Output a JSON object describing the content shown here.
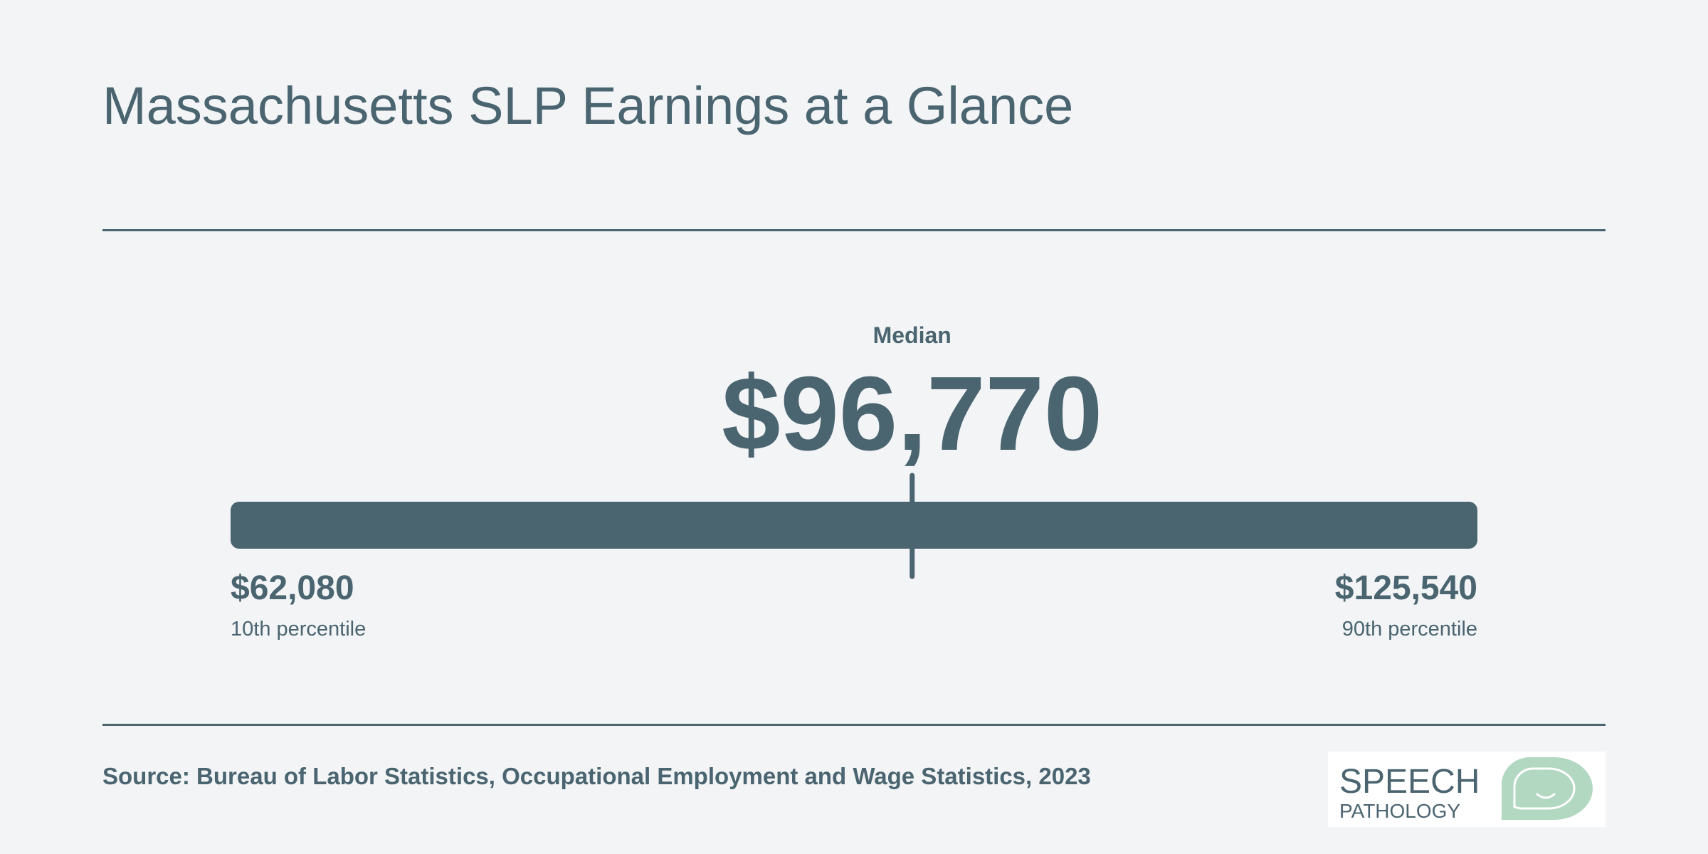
{
  "page": {
    "title": "Massachusetts SLP Earnings at a Glance",
    "source": "Source: Bureau of Labor Statistics, Occupational Employment and Wage Statistics, 2023"
  },
  "logo": {
    "line1": "SPEECH",
    "line2": "PATHOLOGY",
    "icon": "speech-bubble-smile-icon",
    "bubble_color": "#b2d8c2"
  },
  "chart_data": {
    "type": "range",
    "title": "Massachusetts SLP Earnings at a Glance",
    "min": {
      "label": "10th percentile",
      "value": 62080,
      "display": "$62,080"
    },
    "median": {
      "label": "Median",
      "value": 96770,
      "display": "$96,770"
    },
    "max": {
      "label": "90th percentile",
      "value": 125540,
      "display": "$125,540"
    },
    "bar_color": "#4a6470"
  }
}
